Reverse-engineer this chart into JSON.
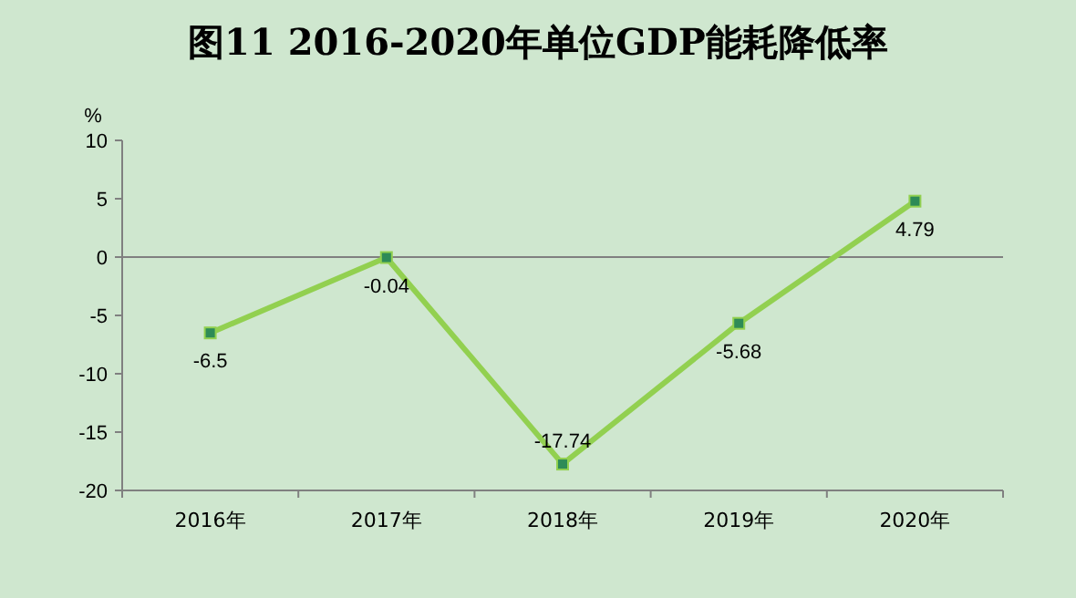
{
  "chart_data": {
    "type": "line",
    "title": "图11  2016-2020年单位GDP能耗降低率",
    "ylabel": "%",
    "categories": [
      "2016年",
      "2017年",
      "2018年",
      "2019年",
      "2020年"
    ],
    "series": [
      {
        "color": "#92d050",
        "values": [
          -6.5,
          -0.04,
          -17.74,
          -5.68,
          4.79
        ]
      }
    ],
    "ylim": [
      -20,
      10
    ],
    "yticks": [
      -20,
      -15,
      -10,
      -5,
      0,
      5,
      10
    ],
    "ref_lines": [
      {
        "axis": "y",
        "value": 0,
        "color": "#808080"
      }
    ],
    "data_labels": true,
    "marker": "square",
    "grid": false
  }
}
